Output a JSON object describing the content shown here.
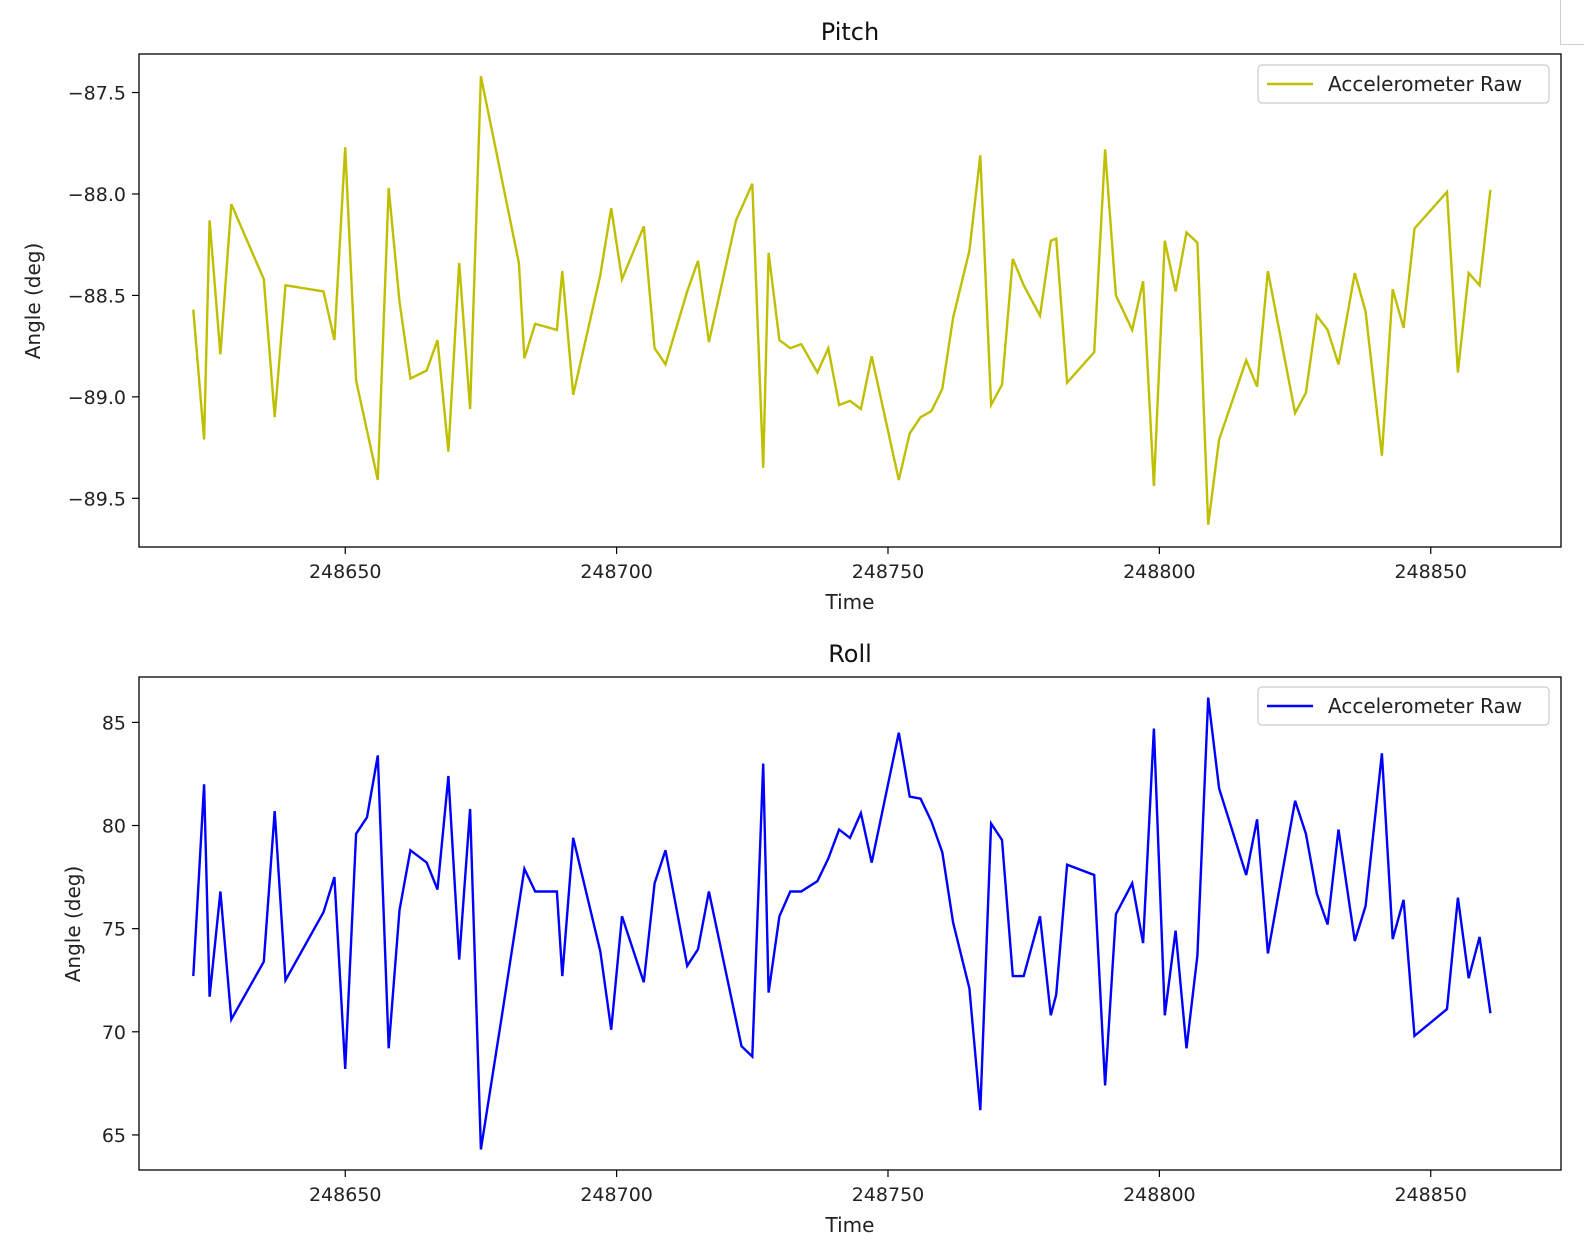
{
  "chart_data": [
    {
      "type": "line",
      "title": "Pitch",
      "xlabel": "Time",
      "ylabel": "Angle (deg)",
      "xlim": [
        248612,
        248874
      ],
      "ylim": [
        -89.74,
        -87.31
      ],
      "xticks": [
        248650,
        248700,
        248750,
        248800,
        248850
      ],
      "yticks": [
        -87.5,
        -88.0,
        -88.5,
        -89.0,
        -89.5
      ],
      "xtick_labels": [
        "248650",
        "248700",
        "248750",
        "248800",
        "248850"
      ],
      "ytick_labels": [
        "−87.5",
        "−88.0",
        "−88.5",
        "−89.0",
        "−89.5"
      ],
      "legend_position": "upper right",
      "series": [
        {
          "name": "Accelerometer Raw",
          "color": "#bfbf00",
          "x": [
            248622,
            248624,
            248625,
            248627,
            248629,
            248635,
            248637,
            248639,
            248646,
            248648,
            248650,
            248652,
            248656,
            248658,
            248660,
            248662,
            248665,
            248667,
            248669,
            248671,
            248673,
            248675,
            248682,
            248683,
            248685,
            248689,
            248690,
            248692,
            248697,
            248699,
            248701,
            248705,
            248707,
            248709,
            248713,
            248715,
            248717,
            248722,
            248725,
            248727,
            248728,
            248730,
            248732,
            248734,
            248737,
            248739,
            248741,
            248743,
            248745,
            248747,
            248752,
            248754,
            248756,
            248758,
            248760,
            248762,
            248765,
            248767,
            248769,
            248771,
            248773,
            248775,
            248778,
            248780,
            248781,
            248783,
            248788,
            248790,
            248792,
            248795,
            248797,
            248799,
            248801,
            248803,
            248805,
            248807,
            248809,
            248811,
            248816,
            248818,
            248820,
            248825,
            248827,
            248829,
            248831,
            248833,
            248836,
            248838,
            248841,
            248843,
            248845,
            248847,
            248853,
            248855,
            248857,
            248859,
            248861
          ],
          "y": [
            -88.57,
            -89.21,
            -88.13,
            -88.79,
            -88.05,
            -88.42,
            -89.1,
            -88.45,
            -88.48,
            -88.72,
            -87.77,
            -88.92,
            -89.41,
            -87.97,
            -88.53,
            -88.91,
            -88.87,
            -88.72,
            -89.27,
            -88.34,
            -89.06,
            -87.42,
            -88.34,
            -88.81,
            -88.64,
            -88.67,
            -88.38,
            -88.99,
            -88.4,
            -88.07,
            -88.42,
            -88.16,
            -88.76,
            -88.84,
            -88.48,
            -88.33,
            -88.73,
            -88.13,
            -87.95,
            -89.35,
            -88.29,
            -88.72,
            -88.76,
            -88.74,
            -88.88,
            -88.76,
            -89.04,
            -89.02,
            -89.06,
            -88.8,
            -89.41,
            -89.18,
            -89.1,
            -89.07,
            -88.96,
            -88.61,
            -88.28,
            -87.81,
            -89.04,
            -88.94,
            -88.32,
            -88.45,
            -88.6,
            -88.23,
            -88.22,
            -88.93,
            -88.78,
            -87.78,
            -88.5,
            -88.67,
            -88.43,
            -89.44,
            -88.23,
            -88.48,
            -88.19,
            -88.24,
            -89.63,
            -89.21,
            -88.82,
            -88.95,
            -88.38,
            -89.08,
            -88.98,
            -88.6,
            -88.67,
            -88.84,
            -88.39,
            -88.58,
            -89.29,
            -88.47,
            -88.66,
            -88.17,
            -87.99,
            -88.88,
            -88.39,
            -88.45,
            -87.98
          ]
        }
      ]
    },
    {
      "type": "line",
      "title": "Roll",
      "xlabel": "Time",
      "ylabel": "Angle (deg)",
      "xlim": [
        248612,
        248874
      ],
      "ylim": [
        63.3,
        87.2
      ],
      "xticks": [
        248650,
        248700,
        248750,
        248800,
        248850
      ],
      "yticks": [
        85,
        80,
        75,
        70,
        65
      ],
      "xtick_labels": [
        "248650",
        "248700",
        "248750",
        "248800",
        "248850"
      ],
      "ytick_labels": [
        "85",
        "80",
        "75",
        "70",
        "65"
      ],
      "legend_position": "upper right",
      "series": [
        {
          "name": "Accelerometer Raw",
          "color": "#0000ff",
          "x": [
            248622,
            248624,
            248625,
            248627,
            248629,
            248635,
            248637,
            248639,
            248646,
            248648,
            248650,
            248652,
            248654,
            248656,
            248658,
            248660,
            248662,
            248665,
            248667,
            248669,
            248671,
            248673,
            248675,
            248679,
            248683,
            248685,
            248689,
            248690,
            248692,
            248697,
            248699,
            248701,
            248705,
            248707,
            248709,
            248713,
            248715,
            248717,
            248723,
            248725,
            248727,
            248728,
            248730,
            248732,
            248734,
            248737,
            248739,
            248741,
            248743,
            248745,
            248747,
            248752,
            248754,
            248756,
            248758,
            248760,
            248762,
            248765,
            248767,
            248769,
            248771,
            248773,
            248775,
            248778,
            248780,
            248781,
            248783,
            248788,
            248790,
            248792,
            248795,
            248797,
            248799,
            248801,
            248803,
            248805,
            248807,
            248809,
            248811,
            248816,
            248818,
            248820,
            248825,
            248827,
            248829,
            248831,
            248833,
            248836,
            248838,
            248841,
            248843,
            248845,
            248847,
            248853,
            248855,
            248857,
            248859,
            248861
          ],
          "y": [
            72.7,
            82.0,
            71.7,
            76.8,
            70.6,
            73.4,
            80.7,
            72.5,
            75.8,
            77.5,
            68.2,
            79.6,
            80.4,
            83.4,
            69.2,
            75.9,
            78.8,
            78.2,
            76.9,
            82.4,
            73.5,
            80.8,
            64.3,
            71.0,
            77.9,
            76.8,
            76.8,
            72.7,
            79.4,
            73.9,
            70.1,
            75.6,
            72.4,
            77.2,
            78.8,
            73.2,
            74.0,
            76.8,
            69.3,
            68.8,
            83.0,
            71.9,
            75.6,
            76.8,
            76.8,
            77.3,
            78.4,
            79.8,
            79.4,
            80.6,
            78.2,
            84.5,
            81.4,
            81.3,
            80.2,
            78.7,
            75.3,
            72.1,
            66.2,
            80.1,
            79.3,
            72.7,
            72.7,
            75.6,
            70.8,
            71.8,
            78.1,
            77.6,
            67.4,
            75.7,
            77.2,
            74.3,
            84.7,
            70.8,
            74.9,
            69.2,
            73.7,
            86.2,
            81.8,
            77.6,
            80.3,
            73.8,
            81.2,
            79.6,
            76.7,
            75.2,
            79.8,
            74.4,
            76.1,
            83.5,
            74.5,
            76.4,
            69.8,
            71.1,
            76.5,
            72.6,
            74.6,
            70.9
          ]
        }
      ]
    }
  ]
}
